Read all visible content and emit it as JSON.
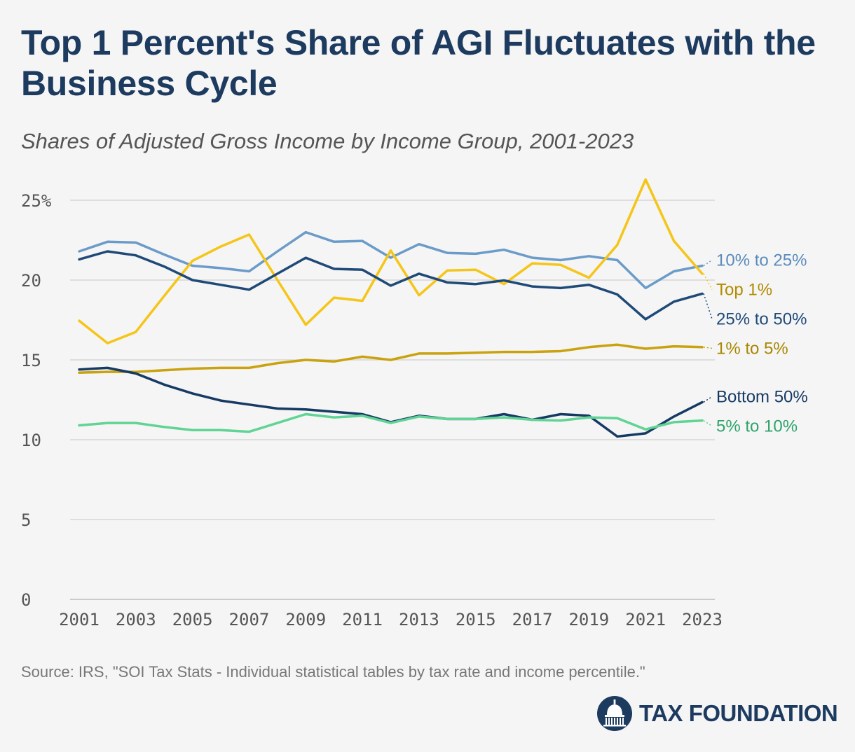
{
  "title": "Top 1 Percent's Share of AGI Fluctuates with the Business Cycle",
  "subtitle": "Shares of Adjusted Gross Income by Income Group, 2001-2023",
  "source": "Source: IRS, \"SOI Tax Stats - Individual statistical tables by tax rate and income percentile.\"",
  "logo_text": "TAX FOUNDATION",
  "chart_data": {
    "type": "line",
    "title": "Top 1 Percent's Share of AGI Fluctuates with the Business Cycle",
    "subtitle": "Shares of Adjusted Gross Income by Income Group, 2001-2023",
    "xlabel": "",
    "ylabel": "",
    "x": [
      2001,
      2002,
      2003,
      2004,
      2005,
      2006,
      2007,
      2008,
      2009,
      2010,
      2011,
      2012,
      2013,
      2014,
      2015,
      2016,
      2017,
      2018,
      2019,
      2020,
      2021,
      2022,
      2023
    ],
    "x_tick_labels": [
      "2001",
      "2003",
      "2005",
      "2007",
      "2009",
      "2011",
      "2013",
      "2015",
      "2017",
      "2019",
      "2021",
      "2023"
    ],
    "ylim": [
      0,
      25
    ],
    "y_ticks": [
      0,
      5,
      10,
      15,
      20,
      25
    ],
    "y_tick_labels": [
      "0",
      "5",
      "10",
      "15",
      "20",
      "25%"
    ],
    "grid": "horizontal",
    "legend": "direct labels at right end of lines",
    "series": [
      {
        "name": "10% to 25%",
        "color": "#6b9bc9",
        "label_color": "#5a8bbd",
        "values": [
          21.8,
          22.4,
          22.35,
          21.6,
          20.9,
          20.75,
          20.55,
          21.8,
          23.0,
          22.4,
          22.45,
          21.4,
          22.25,
          21.7,
          21.65,
          21.9,
          21.4,
          21.25,
          21.5,
          21.25,
          19.5,
          20.55,
          20.9
        ]
      },
      {
        "name": "Top 1%",
        "color": "#f5c518",
        "label_color": "#b38b00",
        "values": [
          17.45,
          16.05,
          16.75,
          19.0,
          21.2,
          22.1,
          22.85,
          20.0,
          17.2,
          18.9,
          18.7,
          21.85,
          19.05,
          20.6,
          20.65,
          19.75,
          21.05,
          20.95,
          20.15,
          22.2,
          26.3,
          22.45,
          20.4
        ]
      },
      {
        "name": "25% to 50%",
        "color": "#1f4a78",
        "label_color": "#1f4a78",
        "values": [
          21.3,
          21.8,
          21.55,
          20.85,
          20.0,
          19.7,
          19.4,
          20.4,
          21.4,
          20.7,
          20.65,
          19.65,
          20.4,
          19.85,
          19.75,
          19.98,
          19.6,
          19.5,
          19.7,
          19.1,
          17.55,
          18.65,
          19.15
        ]
      },
      {
        "name": "1% to 5%",
        "color": "#c9a20e",
        "label_color": "#a88700",
        "values": [
          14.2,
          14.25,
          14.25,
          14.35,
          14.45,
          14.5,
          14.5,
          14.8,
          15.0,
          14.9,
          15.2,
          15.0,
          15.4,
          15.4,
          15.45,
          15.5,
          15.5,
          15.55,
          15.8,
          15.95,
          15.7,
          15.85,
          15.8
        ]
      },
      {
        "name": "Bottom 50%",
        "color": "#163a63",
        "label_color": "#163a63",
        "values": [
          14.4,
          14.5,
          14.15,
          13.45,
          12.9,
          12.45,
          12.2,
          11.95,
          11.9,
          11.75,
          11.6,
          11.1,
          11.5,
          11.3,
          11.3,
          11.6,
          11.25,
          11.6,
          11.5,
          10.2,
          10.4,
          11.45,
          12.35
        ]
      },
      {
        "name": "5% to 10%",
        "color": "#5fd494",
        "label_color": "#2ea36a",
        "values": [
          10.9,
          11.05,
          11.05,
          10.8,
          10.6,
          10.6,
          10.5,
          11.05,
          11.6,
          11.4,
          11.5,
          11.05,
          11.45,
          11.3,
          11.3,
          11.4,
          11.25,
          11.2,
          11.4,
          11.35,
          10.65,
          11.1,
          11.2
        ]
      }
    ]
  }
}
